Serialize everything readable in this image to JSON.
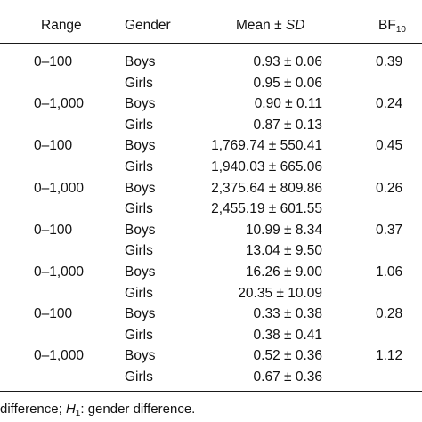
{
  "table": {
    "headers": {
      "range": "Range",
      "gender": "Gender",
      "mean_prefix": "Mean ± ",
      "mean_sd": "SD",
      "bf_base": "BF",
      "bf_sub": "10"
    },
    "rows": [
      {
        "range": "0–100",
        "gender": "Boys",
        "mean": "0.93 ± 0.06",
        "bf": "0.39"
      },
      {
        "range": "",
        "gender": "Girls",
        "mean": "0.95 ± 0.06",
        "bf": ""
      },
      {
        "range": "0–1,000",
        "gender": "Boys",
        "mean": "0.90 ± 0.11",
        "bf": "0.24"
      },
      {
        "range": "",
        "gender": "Girls",
        "mean": "0.87 ± 0.13",
        "bf": ""
      },
      {
        "range": "0–100",
        "gender": "Boys",
        "mean": "1,769.74 ± 550.41",
        "bf": "0.45"
      },
      {
        "range": "",
        "gender": "Girls",
        "mean": "1,940.03 ± 665.06",
        "bf": ""
      },
      {
        "range": "0–1,000",
        "gender": "Boys",
        "mean": "2,375.64 ± 809.86",
        "bf": "0.26"
      },
      {
        "range": "",
        "gender": "Girls",
        "mean": "2,455.19 ± 601.55",
        "bf": ""
      },
      {
        "range": "0–100",
        "gender": "Boys",
        "mean": "10.99 ± 8.34",
        "bf": "0.37"
      },
      {
        "range": "",
        "gender": "Girls",
        "mean": "13.04 ± 9.50",
        "bf": ""
      },
      {
        "range": "0–1,000",
        "gender": "Boys",
        "mean": "16.26 ± 9.00",
        "bf": "1.06"
      },
      {
        "range": "",
        "gender": "Girls",
        "mean": "20.35 ± 10.09",
        "bf": ""
      },
      {
        "range": "0–100",
        "gender": "Boys",
        "mean": "0.33 ± 0.38",
        "bf": "0.28"
      },
      {
        "range": "",
        "gender": "Girls",
        "mean": "0.38 ± 0.41",
        "bf": ""
      },
      {
        "range": "0–1,000",
        "gender": "Boys",
        "mean": "0.52 ± 0.36",
        "bf": "1.12"
      },
      {
        "range": "",
        "gender": "Girls",
        "mean": "0.67 ± 0.36",
        "bf": ""
      }
    ]
  },
  "footnote": {
    "prefix": "difference; ",
    "h_base": "H",
    "h_sub": "1",
    "suffix": ": gender difference."
  }
}
